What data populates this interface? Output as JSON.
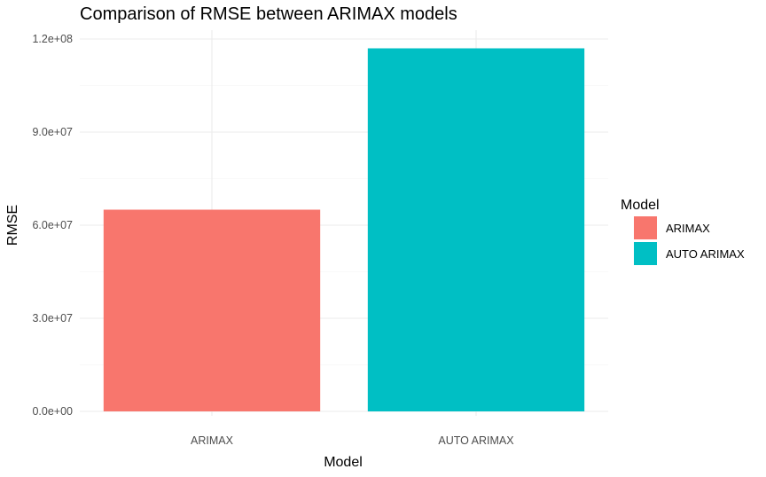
{
  "chart_data": {
    "type": "bar",
    "title": "Comparison of RMSE between ARIMAX models",
    "xlabel": "Model",
    "ylabel": "RMSE",
    "categories": [
      "ARIMAX",
      "AUTO ARIMAX"
    ],
    "values": [
      65000000,
      117000000
    ],
    "colors": [
      "#F8766D",
      "#00BFC4"
    ],
    "ylim": [
      0,
      120000000
    ],
    "yticks": [
      0,
      30000000,
      60000000,
      90000000,
      120000000
    ],
    "ytick_labels": [
      "0.0e+00",
      "3.0e+07",
      "6.0e+07",
      "9.0e+07",
      "1.2e+08"
    ],
    "grid": true,
    "legend": {
      "title": "Model",
      "position": "right",
      "entries": [
        "ARIMAX",
        "AUTO ARIMAX"
      ]
    }
  }
}
